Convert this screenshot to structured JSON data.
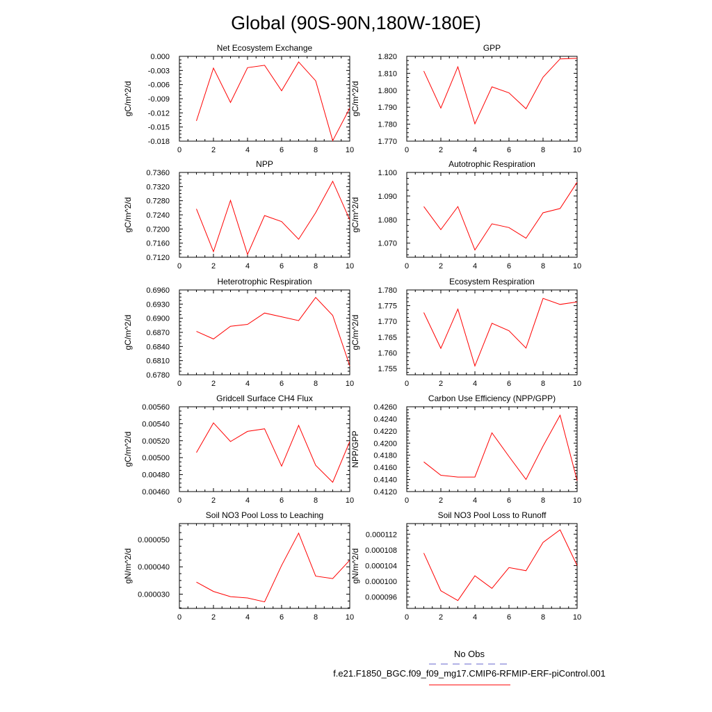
{
  "figure": {
    "title": "Global (90S-90N,180W-180E)",
    "legend": {
      "obs_label": "No Obs",
      "obs_color": "#6666cc",
      "case_label": "f.e21.F1850_BGC.f09_f09_mg17.CMIP6-RFMIP-ERF-piControl.001",
      "case_color": "#ff0000"
    }
  },
  "chart_data": [
    {
      "type": "line",
      "title": "Net Ecosystem Exchange",
      "ylabel": "gC/m^2/d",
      "xlim": [
        0,
        10
      ],
      "xticks": [
        "0",
        "2",
        "4",
        "6",
        "8",
        "10"
      ],
      "ylim": [
        -0.018,
        0.0
      ],
      "yticks": [
        "0.000",
        "-0.003",
        "-0.006",
        "-0.009",
        "-0.012",
        "-0.015",
        "-0.018"
      ],
      "ytick_values": [
        0.0,
        -0.003,
        -0.006,
        -0.009,
        -0.012,
        -0.015,
        -0.018
      ],
      "x": [
        1,
        2,
        3,
        4,
        5,
        6,
        7,
        8,
        9,
        10
      ],
      "values": [
        -0.0137,
        -0.0025,
        -0.0098,
        -0.0024,
        -0.0019,
        -0.0073,
        -0.0012,
        -0.0052,
        -0.0179,
        -0.011
      ],
      "color": "#ff0000"
    },
    {
      "type": "line",
      "title": "GPP",
      "ylabel": "gC/m^2/d",
      "xlim": [
        0,
        10
      ],
      "xticks": [
        "0",
        "2",
        "4",
        "6",
        "8",
        "10"
      ],
      "ylim": [
        1.77,
        1.82
      ],
      "yticks": [
        "1.820",
        "1.810",
        "1.800",
        "1.790",
        "1.780",
        "1.770"
      ],
      "ytick_values": [
        1.82,
        1.81,
        1.8,
        1.79,
        1.78,
        1.77
      ],
      "x": [
        1,
        2,
        3,
        4,
        5,
        6,
        7,
        8,
        9,
        10
      ],
      "values": [
        1.8113,
        1.7895,
        1.8138,
        1.7802,
        1.802,
        1.7985,
        1.7891,
        1.8077,
        1.8185,
        1.8188
      ],
      "color": "#ff0000"
    },
    {
      "type": "line",
      "title": "NPP",
      "ylabel": "gC/m^2/d",
      "xlim": [
        0,
        10
      ],
      "xticks": [
        "0",
        "2",
        "4",
        "6",
        "8",
        "10"
      ],
      "ylim": [
        0.712,
        0.736
      ],
      "yticks": [
        "0.7360",
        "0.7320",
        "0.7280",
        "0.7240",
        "0.7200",
        "0.7160",
        "0.7120"
      ],
      "ytick_values": [
        0.736,
        0.732,
        0.728,
        0.724,
        0.72,
        0.716,
        0.712
      ],
      "x": [
        1,
        2,
        3,
        4,
        5,
        6,
        7,
        8,
        9,
        10
      ],
      "values": [
        0.7257,
        0.7136,
        0.7281,
        0.7128,
        0.7238,
        0.7221,
        0.7171,
        0.7246,
        0.7335,
        0.7226
      ],
      "color": "#ff0000"
    },
    {
      "type": "line",
      "title": "Autotrophic Respiration",
      "ylabel": "gC/m^2/d",
      "xlim": [
        0,
        10
      ],
      "xticks": [
        "0",
        "2",
        "4",
        "6",
        "8",
        "10"
      ],
      "ylim": [
        1.064,
        1.1
      ],
      "yticks": [
        "1.100",
        "1.090",
        "1.080",
        "1.070"
      ],
      "ytick_values": [
        1.1,
        1.09,
        1.08,
        1.07
      ],
      "x": [
        1,
        2,
        3,
        4,
        5,
        6,
        7,
        8,
        9,
        10
      ],
      "values": [
        1.0855,
        1.0757,
        1.0855,
        1.0671,
        1.0782,
        1.0766,
        1.0721,
        1.0829,
        1.0847,
        1.0958
      ],
      "color": "#ff0000"
    },
    {
      "type": "line",
      "title": "Heterotrophic Respiration",
      "ylabel": "gC/m^2/d",
      "xlim": [
        0,
        10
      ],
      "xticks": [
        "0",
        "2",
        "4",
        "6",
        "8",
        "10"
      ],
      "ylim": [
        0.678,
        0.696
      ],
      "yticks": [
        "0.6960",
        "0.6930",
        "0.6900",
        "0.6870",
        "0.6840",
        "0.6810",
        "0.6780"
      ],
      "ytick_values": [
        0.696,
        0.693,
        0.69,
        0.687,
        0.684,
        0.681,
        0.678
      ],
      "x": [
        1,
        2,
        3,
        4,
        5,
        6,
        7,
        8,
        9,
        10
      ],
      "values": [
        0.6872,
        0.6856,
        0.6883,
        0.6887,
        0.6911,
        0.6903,
        0.6895,
        0.6944,
        0.6906,
        0.6799
      ],
      "color": "#ff0000"
    },
    {
      "type": "line",
      "title": "Ecosystem Respiration",
      "ylabel": "gC/m^2/d",
      "xlim": [
        0,
        10
      ],
      "xticks": [
        "0",
        "2",
        "4",
        "6",
        "8",
        "10"
      ],
      "ylim": [
        1.753,
        1.78
      ],
      "yticks": [
        "1.780",
        "1.775",
        "1.770",
        "1.765",
        "1.760",
        "1.755"
      ],
      "ytick_values": [
        1.78,
        1.775,
        1.77,
        1.765,
        1.76,
        1.755
      ],
      "x": [
        1,
        2,
        3,
        4,
        5,
        6,
        7,
        8,
        9,
        10
      ],
      "values": [
        1.7728,
        1.7614,
        1.7739,
        1.7558,
        1.7694,
        1.767,
        1.7615,
        1.7773,
        1.7754,
        1.7762
      ],
      "color": "#ff0000"
    },
    {
      "type": "line",
      "title": "Gridcell Surface CH4 Flux",
      "ylabel": "gC/m^2/d",
      "xlim": [
        0,
        10
      ],
      "xticks": [
        "0",
        "2",
        "4",
        "6",
        "8",
        "10"
      ],
      "ylim": [
        0.0046,
        0.0056
      ],
      "yticks": [
        "0.00560",
        "0.00540",
        "0.00520",
        "0.00500",
        "0.00480",
        "0.00460"
      ],
      "ytick_values": [
        0.0056,
        0.0054,
        0.0052,
        0.005,
        0.0048,
        0.0046
      ],
      "x": [
        1,
        2,
        3,
        4,
        5,
        6,
        7,
        8,
        9,
        10
      ],
      "values": [
        0.00506,
        0.00541,
        0.00519,
        0.00531,
        0.00534,
        0.0049,
        0.00538,
        0.00491,
        0.00471,
        0.00519
      ],
      "color": "#ff0000"
    },
    {
      "type": "line",
      "title": "Carbon Use Efficiency (NPP/GPP)",
      "ylabel": "NPP/GPP",
      "xlim": [
        0,
        10
      ],
      "xticks": [
        "0",
        "2",
        "4",
        "6",
        "8",
        "10"
      ],
      "ylim": [
        0.412,
        0.426
      ],
      "yticks": [
        "0.4260",
        "0.4240",
        "0.4220",
        "0.4200",
        "0.4180",
        "0.4160",
        "0.4140",
        "0.4120"
      ],
      "ytick_values": [
        0.426,
        0.424,
        0.422,
        0.42,
        0.418,
        0.416,
        0.414,
        0.412
      ],
      "x": [
        1,
        2,
        3,
        4,
        5,
        6,
        7,
        8,
        9,
        10
      ],
      "values": [
        0.4169,
        0.4147,
        0.4144,
        0.4144,
        0.4217,
        0.4178,
        0.414,
        0.4195,
        0.4246,
        0.4138
      ],
      "color": "#ff0000"
    },
    {
      "type": "line",
      "title": "Soil NO3 Pool Loss to Leaching",
      "ylabel": "gN/m^2/d",
      "xlim": [
        0,
        10
      ],
      "xticks": [
        "0",
        "2",
        "4",
        "6",
        "8",
        "10"
      ],
      "ylim": [
        2.48e-05,
        5.58e-05
      ],
      "yticks": [
        "0.000050",
        "0.000040",
        "0.000030"
      ],
      "ytick_values": [
        5e-05,
        4e-05,
        3e-05
      ],
      "x": [
        1,
        2,
        3,
        4,
        5,
        6,
        7,
        8,
        9,
        10
      ],
      "values": [
        3.44e-05,
        3.1e-05,
        2.91e-05,
        2.86e-05,
        2.72e-05,
        4.05e-05,
        5.23e-05,
        3.66e-05,
        3.57e-05,
        4.24e-05
      ],
      "color": "#ff0000"
    },
    {
      "type": "line",
      "title": "Soil NO3 Pool Loss to Runoff",
      "ylabel": "gN/m^2/d",
      "xlim": [
        0,
        10
      ],
      "xticks": [
        "0",
        "2",
        "4",
        "6",
        "8",
        "10"
      ],
      "ylim": [
        9.31e-05,
        0.0001147
      ],
      "yticks": [
        "0.000112",
        "0.000108",
        "0.000104",
        "0.000100",
        "0.000096"
      ],
      "ytick_values": [
        0.000112,
        0.000108,
        0.000104,
        0.0001,
        9.6e-05
      ],
      "x": [
        1,
        2,
        3,
        4,
        5,
        6,
        7,
        8,
        9,
        10
      ],
      "values": [
        0.0001072,
        9.76e-05,
        9.51e-05,
        0.0001014,
        9.82e-05,
        0.0001035,
        0.0001027,
        0.0001099,
        0.0001131,
        0.000104
      ],
      "color": "#ff0000"
    }
  ]
}
